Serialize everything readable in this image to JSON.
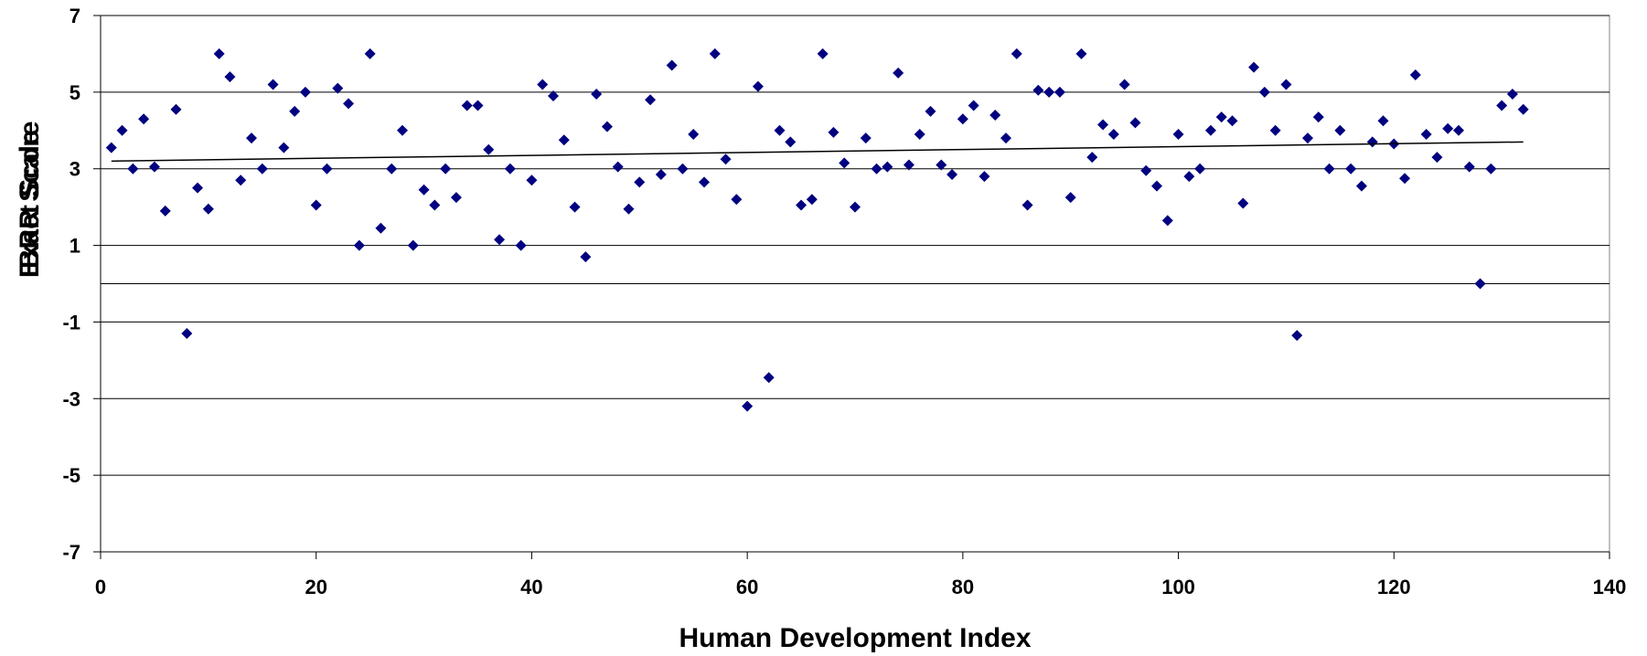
{
  "chart_data": {
    "type": "scatter",
    "xlabel": "Human Development Index",
    "ylabel": "Exact Score",
    "ylabel_overlap": "BRR Scale",
    "xlim": [
      0,
      140
    ],
    "ylim": [
      -7,
      7
    ],
    "x_ticks": [
      0,
      20,
      40,
      60,
      80,
      100,
      120,
      140
    ],
    "y_ticks": [
      7,
      5,
      3,
      1,
      -1,
      -3,
      -5,
      -7
    ],
    "grid": "horizontal",
    "legend": "none",
    "marker_color": "#000080",
    "trendline": {
      "x": [
        1,
        132
      ],
      "y": [
        3.2,
        3.7
      ]
    },
    "series": [
      {
        "x": [
          1,
          2,
          3,
          4,
          5,
          6,
          7,
          8,
          9,
          10,
          11,
          12,
          13,
          14,
          15,
          16,
          17,
          18,
          19,
          20,
          21,
          22,
          23,
          24,
          25,
          26,
          27,
          28,
          29,
          30,
          31,
          32,
          33,
          34,
          35,
          36,
          37,
          38,
          39,
          40,
          41,
          42,
          43,
          44,
          45,
          46,
          47,
          48,
          49,
          50,
          51,
          52,
          53,
          54,
          55,
          56,
          57,
          58,
          59,
          60,
          61,
          62,
          63,
          64,
          65,
          66,
          67,
          68,
          69,
          70,
          71,
          72,
          73,
          74,
          75,
          76,
          77,
          78,
          79,
          80,
          81,
          82,
          83,
          84,
          85,
          86,
          87,
          88,
          89,
          90,
          91,
          92,
          93,
          94,
          95,
          96,
          97,
          98,
          99,
          100,
          101,
          102,
          103,
          104,
          105,
          106,
          107,
          108,
          109,
          110,
          111,
          112,
          113,
          114,
          115,
          116,
          117,
          118,
          119,
          120,
          121,
          122,
          123,
          124,
          125,
          126,
          127,
          128,
          129,
          130,
          131,
          132
        ],
        "y": [
          3.55,
          4,
          3,
          4.3,
          3.05,
          1.9,
          4.55,
          -1.3,
          2.5,
          1.95,
          6,
          5.4,
          2.7,
          3.8,
          3,
          5.2,
          3.55,
          4.5,
          5,
          2.05,
          3,
          5.1,
          4.7,
          1,
          6,
          1.45,
          3,
          4,
          1,
          2.45,
          2.05,
          3,
          2.25,
          4.65,
          4.65,
          3.5,
          1.15,
          3,
          1,
          2.7,
          5.2,
          4.9,
          3.75,
          2,
          0.7,
          4.95,
          4.1,
          3.05,
          1.95,
          2.65,
          4.8,
          2.85,
          5.7,
          3,
          3.9,
          2.65,
          6,
          3.25,
          2.2,
          -3.2,
          5.15,
          -2.45,
          4,
          3.7,
          2.05,
          2.2,
          6,
          3.95,
          3.15,
          2,
          3.8,
          3,
          3.05,
          5.5,
          3.1,
          3.9,
          4.5,
          3.1,
          2.85,
          4.3,
          4.65,
          2.8,
          4.4,
          3.8,
          6,
          2.05,
          5.05,
          5,
          5,
          2.25,
          6,
          3.3,
          4.15,
          3.9,
          5.2,
          4.2,
          2.95,
          2.55,
          1.65,
          3.9,
          2.8,
          3,
          4,
          4.35,
          4.25,
          2.1,
          5.65,
          5,
          4,
          5.2,
          -1.35,
          3.8,
          4.35,
          3,
          4,
          3,
          2.55,
          3.7,
          4.25,
          3.65,
          2.75,
          5.45,
          3.9,
          3.3,
          4.05,
          4,
          3.05,
          0,
          3,
          4.65,
          4.95,
          4.55
        ]
      }
    ]
  }
}
